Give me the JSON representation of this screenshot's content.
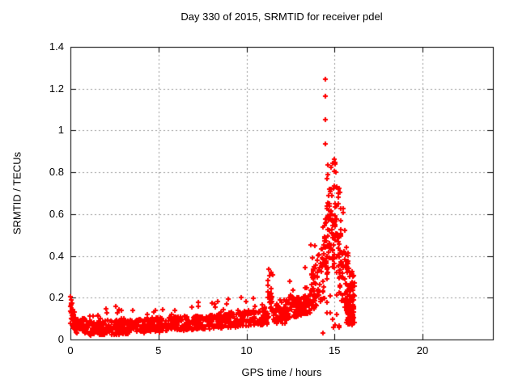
{
  "chart_data": {
    "type": "scatter",
    "title": "Day 330 of 2015, SRMTID for receiver pdel",
    "xlabel": "GPS time / hours",
    "ylabel": "SRMTID / TECUs",
    "xlim": [
      0,
      24
    ],
    "ylim": [
      0,
      1.4
    ],
    "x_ticks": [
      0,
      5,
      10,
      15,
      20
    ],
    "x_tick_labels": [
      "0",
      "5",
      "10",
      "15",
      "20"
    ],
    "y_ticks": [
      0,
      0.2,
      0.4,
      0.6,
      0.8,
      1,
      1.2,
      1.4
    ],
    "y_tick_labels": [
      "0",
      "0.2",
      "0.4",
      "0.6",
      "0.8",
      "1",
      "1.2",
      "1.4"
    ],
    "grid": true,
    "grid_style": "dashed",
    "legend_position": "none",
    "marker": "plus",
    "marker_size_px": 7,
    "marker_color": "#ff0000",
    "grid_color": "#999999",
    "axis_color": "#000000",
    "background_color": "#ffffff",
    "data_x_range_hours": [
      0,
      16.15
    ],
    "peak_value_tecus": 1.245,
    "peak_time_hours": 14.5,
    "seed": 42,
    "outlier_points": [
      [
        0.02,
        0.205
      ],
      [
        0.04,
        0.19
      ],
      [
        0.05,
        0.175
      ],
      [
        11.28,
        0.335
      ],
      [
        11.33,
        0.305
      ],
      [
        12.48,
        0.28
      ],
      [
        13.32,
        0.345
      ],
      [
        14.35,
        0.03
      ],
      [
        14.48,
        1.245
      ],
      [
        14.5,
        1.165
      ],
      [
        14.49,
        1.05
      ],
      [
        14.47,
        0.935
      ],
      [
        14.62,
        0.835
      ],
      [
        14.6,
        0.79
      ],
      [
        14.98,
        0.862
      ],
      [
        15.02,
        0.848
      ],
      [
        15.05,
        0.84
      ],
      [
        15.0,
        0.805
      ],
      [
        15.08,
        0.8
      ]
    ],
    "noise_segments": [
      [
        0.0,
        0.3,
        30,
        0.07,
        0.21,
        0.04,
        0.12,
        0,
        0
      ],
      [
        0.3,
        1.0,
        55,
        0.03,
        0.11,
        0.025,
        0.095,
        0.03,
        0.135
      ],
      [
        1.0,
        2.0,
        80,
        0.02,
        0.09,
        0.02,
        0.09,
        0.05,
        0.16
      ],
      [
        2.0,
        3.0,
        80,
        0.02,
        0.09,
        0.025,
        0.095,
        0.06,
        0.17
      ],
      [
        3.0,
        4.0,
        80,
        0.025,
        0.095,
        0.03,
        0.1,
        0.05,
        0.15
      ],
      [
        4.0,
        5.0,
        80,
        0.03,
        0.1,
        0.035,
        0.105,
        0.05,
        0.16
      ],
      [
        5.0,
        6.0,
        75,
        0.035,
        0.105,
        0.04,
        0.11,
        0.05,
        0.19
      ],
      [
        6.0,
        7.0,
        75,
        0.04,
        0.11,
        0.045,
        0.115,
        0.04,
        0.16
      ],
      [
        7.0,
        8.0,
        75,
        0.045,
        0.115,
        0.05,
        0.12,
        0.05,
        0.18
      ],
      [
        8.0,
        9.0,
        70,
        0.05,
        0.12,
        0.055,
        0.13,
        0.05,
        0.2
      ],
      [
        9.0,
        10.0,
        70,
        0.055,
        0.13,
        0.06,
        0.14,
        0.05,
        0.21
      ],
      [
        10.0,
        11.2,
        80,
        0.06,
        0.14,
        0.07,
        0.15,
        0.04,
        0.22
      ],
      [
        11.2,
        11.5,
        28,
        0.1,
        0.26,
        0.1,
        0.24,
        0.15,
        0.33
      ],
      [
        11.5,
        12.3,
        60,
        0.07,
        0.16,
        0.08,
        0.17,
        0.03,
        0.2
      ],
      [
        12.3,
        12.65,
        26,
        0.09,
        0.21,
        0.1,
        0.22,
        0.12,
        0.28
      ],
      [
        12.65,
        13.6,
        75,
        0.1,
        0.2,
        0.12,
        0.22,
        0.04,
        0.26
      ],
      [
        13.6,
        14.1,
        50,
        0.13,
        0.3,
        0.16,
        0.42,
        0.06,
        0.47
      ],
      [
        14.1,
        14.45,
        32,
        0.16,
        0.42,
        0.2,
        0.5,
        0.06,
        0.55
      ],
      [
        14.45,
        14.8,
        48,
        0.25,
        0.6,
        0.32,
        0.75,
        0.08,
        0.85
      ],
      [
        14.8,
        15.25,
        60,
        0.25,
        0.72,
        0.28,
        0.78,
        0.06,
        0.86
      ],
      [
        15.25,
        15.65,
        45,
        0.18,
        0.72,
        0.14,
        0.6,
        0,
        0
      ],
      [
        15.65,
        16.15,
        75,
        0.07,
        0.45,
        0.06,
        0.3,
        0,
        0
      ],
      [
        15.7,
        16.1,
        45,
        0.08,
        0.2,
        0.08,
        0.18,
        0,
        0
      ],
      [
        14.55,
        15.3,
        12,
        0.05,
        0.22,
        0.05,
        0.22,
        0,
        0
      ]
    ]
  }
}
